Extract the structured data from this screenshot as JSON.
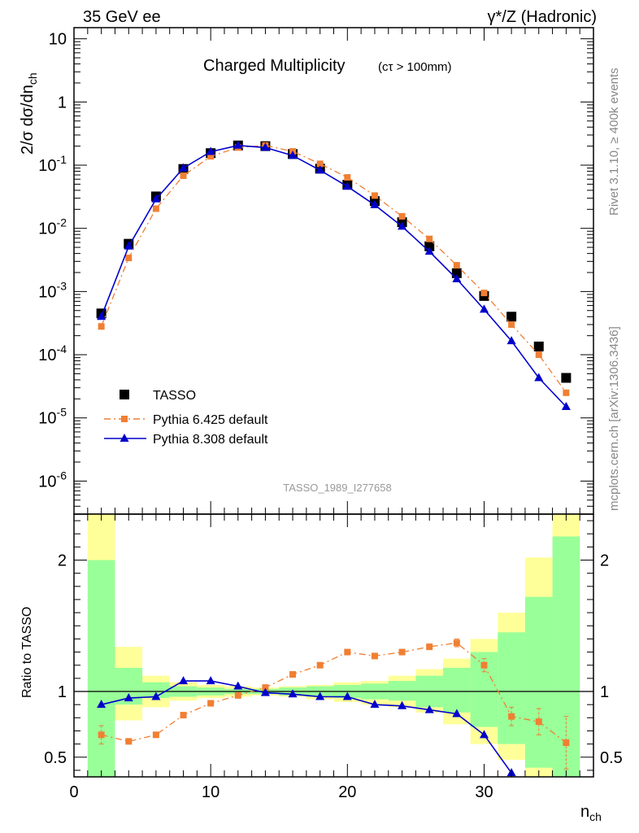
{
  "header": {
    "left": "35 GeV ee",
    "right": "γ*/Z (Hadronic)"
  },
  "side_labels": {
    "rivet": "Rivet 3.1.10, ≥ 400k events",
    "source": "mcplots.cern.ch [arXiv:1306.3436]"
  },
  "chart_data": [
    {
      "type": "scatter",
      "title": "Charged Multiplicity",
      "title_suffix": "(cτ > 100mm)",
      "ylabel": "2/σ dσ/dn_ch",
      "xlabel": "n_ch",
      "xlim": [
        0,
        38
      ],
      "ylim": [
        3e-07,
        15
      ],
      "yscale": "log",
      "yticks": [
        "10^-6",
        "10^-5",
        "10^-4",
        "10^-3",
        "10^-2",
        "10^-1",
        "1",
        "10"
      ],
      "watermark": "TASSO_1989_I277658",
      "legend_position": "lower-left",
      "series": [
        {
          "name": "TASSO",
          "style": "data",
          "color": "#000000",
          "x": [
            2,
            4,
            6,
            8,
            10,
            12,
            14,
            16,
            18,
            20,
            22,
            24,
            26,
            28,
            30,
            32,
            34,
            36
          ],
          "y": [
            0.00045,
            0.0057,
            0.032,
            0.087,
            0.155,
            0.205,
            0.2,
            0.15,
            0.088,
            0.049,
            0.027,
            0.0125,
            0.0052,
            0.00195,
            0.00085,
            0.0004,
            0.000135,
            4.3e-05
          ]
        },
        {
          "name": "Pythia 6.425 default",
          "style": "dashdot",
          "color": "#f07f33",
          "x": [
            2,
            4,
            6,
            8,
            10,
            12,
            14,
            16,
            18,
            20,
            22,
            24,
            26,
            28,
            30,
            32,
            34,
            36
          ],
          "y": [
            0.00028,
            0.0034,
            0.0205,
            0.068,
            0.138,
            0.19,
            0.205,
            0.165,
            0.105,
            0.064,
            0.033,
            0.0155,
            0.0068,
            0.0026,
            0.00095,
            0.0003,
            0.0001,
            2.5e-05
          ]
        },
        {
          "name": "Pythia 8.308 default",
          "style": "solid",
          "color": "#0000cc",
          "x": [
            2,
            4,
            6,
            8,
            10,
            12,
            14,
            16,
            18,
            20,
            22,
            24,
            26,
            28,
            30,
            32,
            34,
            36
          ],
          "y": [
            0.0004,
            0.0052,
            0.029,
            0.09,
            0.163,
            0.205,
            0.19,
            0.142,
            0.083,
            0.046,
            0.0235,
            0.0107,
            0.0043,
            0.00158,
            0.00052,
            0.000165,
            4.3e-05,
            1.5e-05
          ]
        }
      ]
    },
    {
      "type": "line",
      "ylabel": "Ratio to TASSO",
      "xlabel": "n_ch",
      "xlim": [
        0,
        38
      ],
      "ylim": [
        0.35,
        2.35
      ],
      "xticks": [
        "0",
        "10",
        "20",
        "30"
      ],
      "yticks": [
        "0.5",
        "1",
        "2"
      ],
      "bands": {
        "bin_edges": [
          1,
          3,
          5,
          7,
          9,
          11,
          13,
          15,
          17,
          19,
          21,
          23,
          25,
          27,
          29,
          31,
          33,
          35,
          37
        ],
        "yellow_low": [
          0.35,
          0.78,
          0.88,
          0.93,
          0.95,
          0.96,
          0.97,
          0.96,
          0.94,
          0.92,
          0.9,
          0.88,
          0.84,
          0.75,
          0.6,
          0.48,
          0.35,
          0.35
        ],
        "yellow_high": [
          2.35,
          1.34,
          1.12,
          1.07,
          1.05,
          1.04,
          1.03,
          1.04,
          1.05,
          1.07,
          1.08,
          1.12,
          1.17,
          1.25,
          1.4,
          1.6,
          2.02,
          2.35
        ],
        "green_low": [
          0.35,
          0.9,
          0.95,
          0.96,
          0.97,
          0.98,
          0.98,
          0.97,
          0.96,
          0.95,
          0.94,
          0.93,
          0.88,
          0.84,
          0.73,
          0.6,
          0.42,
          0.35
        ],
        "green_high": [
          2.0,
          1.18,
          1.07,
          1.04,
          1.03,
          1.02,
          1.02,
          1.03,
          1.04,
          1.05,
          1.06,
          1.08,
          1.12,
          1.18,
          1.3,
          1.45,
          1.72,
          2.18
        ]
      },
      "series": [
        {
          "name": "Pythia 6.425 default",
          "color": "#f07f33",
          "x": [
            2,
            4,
            6,
            8,
            10,
            12,
            14,
            16,
            18,
            20,
            22,
            24,
            26,
            28,
            30,
            32,
            34,
            36
          ],
          "y": [
            0.67,
            0.62,
            0.67,
            0.82,
            0.91,
            0.97,
            1.03,
            1.13,
            1.2,
            1.3,
            1.27,
            1.3,
            1.34,
            1.37,
            1.2,
            0.81,
            0.77,
            0.61
          ],
          "err": [
            0.07,
            0.015,
            0.01,
            0.01,
            0.01,
            0.01,
            0.01,
            0.01,
            0.01,
            0.01,
            0.015,
            0.015,
            0.02,
            0.03,
            0.05,
            0.07,
            0.1,
            0.2
          ]
        },
        {
          "name": "Pythia 8.308 default",
          "color": "#0000cc",
          "x": [
            2,
            4,
            6,
            8,
            10,
            12,
            14,
            16,
            18,
            20,
            22,
            24,
            26,
            28,
            30,
            32
          ],
          "y": [
            0.9,
            0.95,
            0.96,
            1.08,
            1.08,
            1.04,
            0.99,
            0.98,
            0.96,
            0.96,
            0.9,
            0.89,
            0.86,
            0.83,
            0.67,
            0.38
          ]
        }
      ]
    }
  ]
}
